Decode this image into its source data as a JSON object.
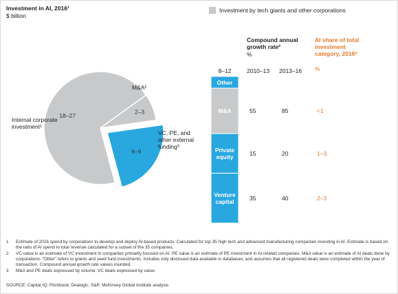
{
  "title": "Investment in AI, 2016¹",
  "unit": "$ billion",
  "legend": {
    "label": "Investment by tech giants and other corporations",
    "color": "#c8c9cb"
  },
  "chart_data": [
    {
      "type": "pie",
      "categories": [
        "Internal corporate investment¹",
        "M&A²",
        "VC, PE, and other external funding³"
      ],
      "values": [
        22.5,
        2.5,
        7.5
      ],
      "value_labels": [
        "18–27",
        "2–3",
        "6–9"
      ],
      "colors": [
        "#c8c9cb",
        "#c8c9cb",
        "#29a8e0"
      ]
    },
    {
      "type": "stacked-bar",
      "total_label": "8–12",
      "categories": [
        "Other",
        "M&A",
        "Private equity",
        "Venture capital"
      ],
      "values": [
        0.8,
        3.1,
        2.7,
        3.4
      ],
      "colors": [
        "#29a8e0",
        "#c8c9cb",
        "#29a8e0",
        "#29a8e0"
      ]
    }
  ],
  "table": {
    "cagr_header": "Compound annual growth rate²",
    "cagr_unit": "%",
    "share_header": "AI share of total investment category, 2016³",
    "share_unit": "%",
    "columns": [
      "2010–13",
      "2013–16"
    ],
    "rows": [
      [
        55,
        85,
        "<1"
      ],
      [
        15,
        20,
        "1–3"
      ],
      [
        35,
        40,
        "2–3"
      ]
    ]
  },
  "footnotes": [
    {
      "number": "1",
      "text": "Estimate of 2016 spend by corporations to develop and deploy AI-based products. Calculated for top 35 high tech and advanced manufacturing companies investing in AI. Estimate is based on the ratio of AI spend to total revenue calculated for a subset of the 35 companies."
    },
    {
      "number": "2",
      "text": "VC value is an estimate of VC investment in companies primarily focused on AI. PE value is an estimate of PE investment in AI-related companies. M&A value is an estimate of AI deals done by corporations. “Other” refers to grants and seed fund investments. Includes only disclosed data available in databases, and assumes that all registered deals were completed within the year of transaction. Compound annual growth rate values rounded."
    },
    {
      "number": "3",
      "text": "M&A and PE deals expressed by volume; VC deals expressed by value."
    }
  ],
  "source": "SOURCE: Capital IQ; Pitchbook; Dealogic; S&P; McKinsey Global Institute analysis"
}
